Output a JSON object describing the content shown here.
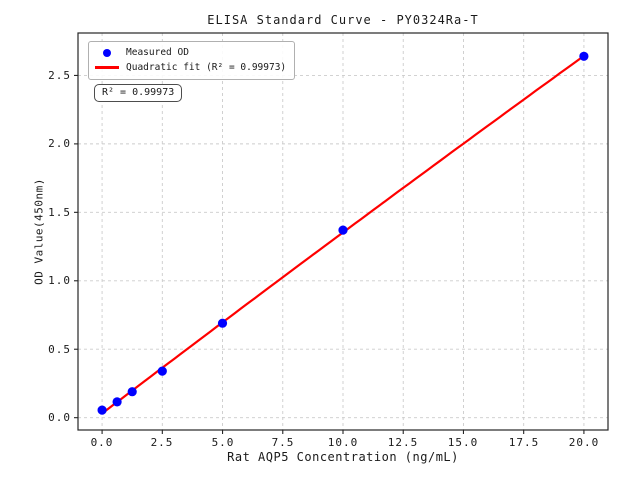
{
  "chart_data": {
    "type": "scatter",
    "title": "ELISA Standard Curve - PY0324Ra-T",
    "xlabel": "Rat AQP5 Concentration (ng/mL)",
    "ylabel": "OD Value(450nm)",
    "xlim": [
      -1,
      21
    ],
    "ylim": [
      -0.09,
      2.81
    ],
    "xticks": [
      0,
      2.5,
      5,
      7.5,
      10,
      12.5,
      15,
      17.5,
      20
    ],
    "xtick_labels": [
      "0.0",
      "2.5",
      "5.0",
      "7.5",
      "10.0",
      "12.5",
      "15.0",
      "17.5",
      "20.0"
    ],
    "yticks": [
      0,
      0.5,
      1,
      1.5,
      2,
      2.5
    ],
    "ytick_labels": [
      "0.0",
      "0.5",
      "1.0",
      "1.5",
      "2.0",
      "2.5"
    ],
    "grid": true,
    "legend_position": "upper left",
    "series": [
      {
        "name": "Measured OD",
        "type": "scatter",
        "color": "#0000ff",
        "x": [
          0,
          0.625,
          1.25,
          2.5,
          5,
          10,
          20
        ],
        "y": [
          0.055,
          0.115,
          0.19,
          0.34,
          0.69,
          1.37,
          2.64
        ]
      },
      {
        "name": "Quadratic fit (R² = 0.99973)",
        "type": "line",
        "color": "#ff0000",
        "fit_quadratic": {
          "a": -0.00016,
          "b": 0.1338,
          "c": 0.031
        },
        "x_start": 0,
        "x_end": 20,
        "r_squared": 0.99973
      }
    ],
    "annotation": "R² = 0.99973"
  },
  "colors": {
    "scatter": "#0000ff",
    "fit_line": "#ff0000",
    "grid": "#cccccc",
    "spine": "#262626",
    "text": "#1a1a1a",
    "legend_border": "#b0b0b0"
  }
}
